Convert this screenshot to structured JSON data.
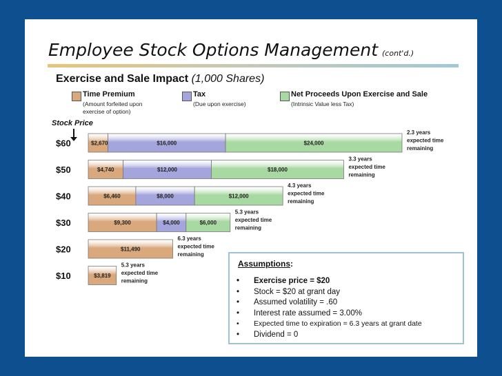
{
  "title": {
    "main": "Employee Stock Options Management",
    "suffix": "(cont'd.)"
  },
  "subtitle": {
    "main": "Exercise and Sale Impact",
    "paren": "(1,000 Shares)"
  },
  "legend": [
    {
      "label": "Time Premium",
      "note": "(Amount forfeited upon exercise of option)",
      "color": "#d9a87c"
    },
    {
      "label": "Tax",
      "note": "(Due upon exercise)",
      "color": "#a5a5dd"
    },
    {
      "label": "Net Proceeds Upon Exercise and Sale",
      "note": "(Intrinsic Value less Tax)",
      "color": "#a9d9a2"
    }
  ],
  "stock_price_label": "Stock Price",
  "chart_data": {
    "type": "bar",
    "orientation": "horizontal-stacked",
    "categories": [
      "$60",
      "$50",
      "$40",
      "$30",
      "$20",
      "$10"
    ],
    "series": [
      {
        "name": "Time Premium",
        "values": [
          2670,
          4740,
          6460,
          9300,
          11490,
          3819
        ],
        "labels": [
          "$2,670",
          "$4,740",
          "$6,460",
          "$9,300",
          "$11,490",
          "$3,819"
        ]
      },
      {
        "name": "Tax",
        "values": [
          16000,
          12000,
          8000,
          4000,
          0,
          0
        ],
        "labels": [
          "$16,000",
          "$12,000",
          "$8,000",
          "$4,000",
          "",
          ""
        ]
      },
      {
        "name": "Net Proceeds Upon Exercise and Sale",
        "values": [
          24000,
          18000,
          12000,
          6000,
          0,
          0
        ],
        "labels": [
          "$24,000",
          "$18,000",
          "$12,000",
          "$6,000",
          "",
          ""
        ]
      }
    ],
    "annotations": [
      [
        "2.3 years",
        "expected  time",
        "remaining"
      ],
      [
        "3.3 years",
        "expected  time",
        "remaining"
      ],
      [
        "4.3 years",
        "expected  time",
        "remaining"
      ],
      [
        "5.3 years",
        "expected  time",
        "remaining"
      ],
      [
        "6.3 years",
        "expected  time",
        "remaining"
      ],
      [
        "5.3 years",
        "expected  time",
        "remaining"
      ]
    ],
    "colors": {
      "Time Premium": "#d9a87c",
      "Tax": "#a5a5dd",
      "Net Proceeds Upon Exercise and Sale": "#a9d9a2"
    }
  },
  "assumptions": {
    "title": "Assumptions",
    "items": [
      {
        "text": "Exercise price = $20",
        "bold": true
      },
      {
        "text": "Stock = $20 at grant day",
        "bold": false
      },
      {
        "text": "Assumed volatility = .60",
        "bold": false
      },
      {
        "text": "Interest rate assumed = 3.00%",
        "bold": false
      },
      {
        "text": "Expected time to expiration = 6.3 years at grant date",
        "bold": false
      },
      {
        "text": "Dividend = 0",
        "bold": false
      }
    ]
  }
}
